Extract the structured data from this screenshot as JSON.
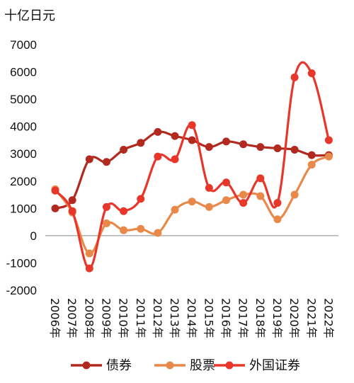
{
  "chart_data": {
    "type": "line",
    "unit_label": "十亿日元",
    "x": [
      "2006年",
      "2007年",
      "2008年",
      "2009年",
      "2010年",
      "2011年",
      "2012年",
      "2013年",
      "2014年",
      "2015年",
      "2016年",
      "2017年",
      "2018年",
      "2019年",
      "2020年",
      "2021年",
      "2022年"
    ],
    "y_ticks": [
      "7000",
      "6000",
      "5000",
      "4000",
      "3000",
      "2000",
      "1000",
      "0",
      "-1000",
      "-2000"
    ],
    "ylim": [
      -2000,
      7000
    ],
    "series": [
      {
        "name": "债券",
        "color": "#b22a1f",
        "values": [
          1000,
          1300,
          2800,
          2700,
          3150,
          3400,
          3800,
          3650,
          3500,
          3250,
          3450,
          3350,
          3250,
          3200,
          3150,
          2950,
          2950
        ]
      },
      {
        "name": "股票",
        "color": "#e8894a",
        "values": [
          1700,
          850,
          -650,
          450,
          200,
          250,
          100,
          950,
          1250,
          1050,
          1300,
          1500,
          1450,
          600,
          1500,
          2600,
          2900
        ]
      },
      {
        "name": "外国证券",
        "color": "#e8372a",
        "values": [
          1650,
          900,
          -1200,
          1050,
          900,
          1350,
          2900,
          2800,
          4050,
          1750,
          1950,
          1200,
          2100,
          1200,
          5800,
          5950,
          3500
        ]
      }
    ],
    "legend_position": "bottom",
    "grid": false
  }
}
